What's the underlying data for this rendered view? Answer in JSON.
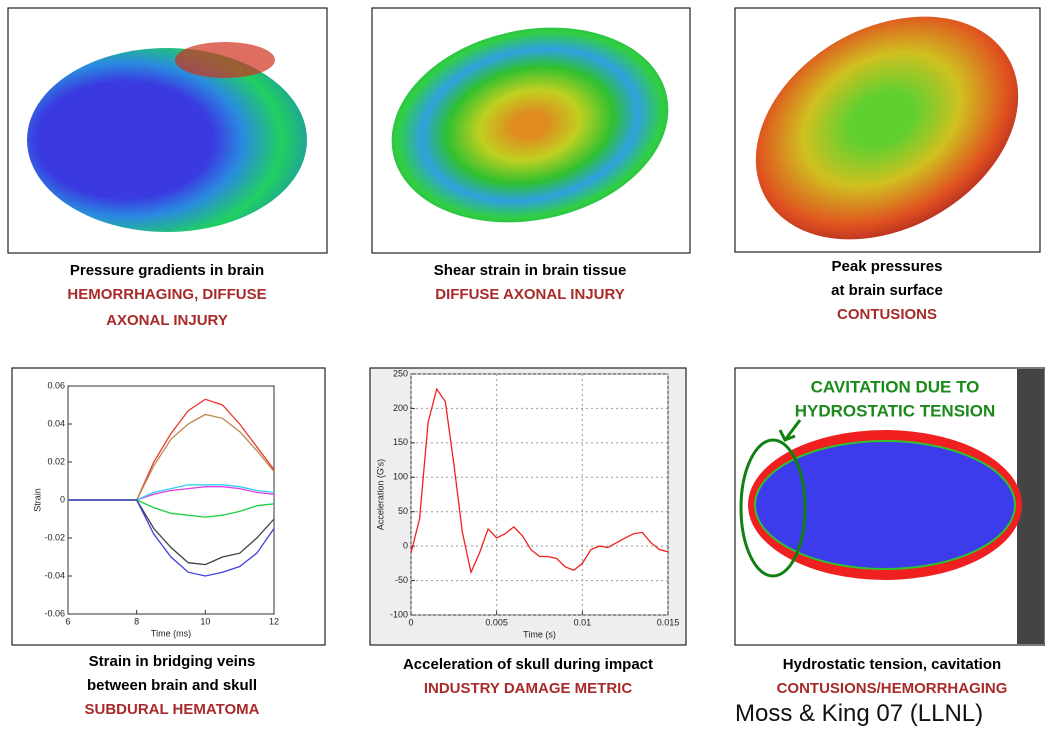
{
  "panels": [
    {
      "caption": [
        "Pressure gradients in brain"
      ],
      "injury": [
        "HEMORRHAGING, DIFFUSE",
        "AXONAL INJURY"
      ]
    },
    {
      "caption": [
        "Shear strain in brain tissue"
      ],
      "injury": [
        "DIFFUSE AXONAL INJURY"
      ]
    },
    {
      "caption": [
        "Peak pressures",
        "at brain surface"
      ],
      "injury": [
        "CONTUSIONS"
      ]
    },
    {
      "caption": [
        "Strain in bridging veins",
        "between brain and skull"
      ],
      "injury": [
        "SUBDURAL HEMATOMA"
      ]
    },
    {
      "caption": [
        "Acceleration of skull during impact"
      ],
      "injury": [
        "INDUSTRY DAMAGE METRIC"
      ]
    },
    {
      "caption": [
        "Hydrostatic tension, cavitation"
      ],
      "injury": [
        "CONTUSIONS/HEMORRHAGING"
      ],
      "image_label": [
        "CAVITATION DUE TO",
        "HYDROSTATIC TENSION"
      ]
    }
  ],
  "credit": "Moss & King 07 (LLNL)",
  "chart_data": [
    {
      "type": "line",
      "xlabel": "Time (ms)",
      "ylabel": "Strain",
      "grid": false,
      "x": [
        6,
        7,
        8,
        8.5,
        9,
        9.5,
        10,
        10.5,
        11,
        11.5,
        12
      ],
      "xlim": [
        6,
        12
      ],
      "xticks": [
        6,
        8,
        10,
        12
      ],
      "ylim": [
        -0.06,
        0.06
      ],
      "yticks": [
        -0.06,
        -0.04,
        -0.02,
        0,
        0.02,
        0.04,
        0.06
      ],
      "series": [
        {
          "color": "#e8382c",
          "values": [
            0,
            0,
            0,
            0.02,
            0.035,
            0.047,
            0.053,
            0.05,
            0.04,
            0.028,
            0.016
          ]
        },
        {
          "color": "#b88a50",
          "values": [
            0,
            0,
            0,
            0.018,
            0.032,
            0.04,
            0.045,
            0.043,
            0.036,
            0.026,
            0.015
          ]
        },
        {
          "color": "#e040e0",
          "values": [
            0,
            0,
            0,
            0.003,
            0.005,
            0.006,
            0.007,
            0.007,
            0.006,
            0.004,
            0.003
          ]
        },
        {
          "color": "#30d0f0",
          "values": [
            0,
            0,
            0,
            0.004,
            0.006,
            0.008,
            0.008,
            0.008,
            0.007,
            0.005,
            0.004
          ]
        },
        {
          "color": "#20d040",
          "values": [
            0,
            0,
            0,
            -0.004,
            -0.007,
            -0.008,
            -0.009,
            -0.008,
            -0.006,
            -0.003,
            -0.002
          ]
        },
        {
          "color": "#404040",
          "values": [
            0,
            0,
            0,
            -0.015,
            -0.025,
            -0.033,
            -0.034,
            -0.03,
            -0.028,
            -0.02,
            -0.01
          ]
        },
        {
          "color": "#4040e0",
          "values": [
            0,
            0,
            0,
            -0.018,
            -0.03,
            -0.038,
            -0.04,
            -0.038,
            -0.035,
            -0.028,
            -0.015
          ]
        }
      ]
    },
    {
      "type": "line",
      "xlabel": "Time (s)",
      "ylabel": "Acceleration (G's)",
      "grid": true,
      "x": [
        0,
        0.0005,
        0.001,
        0.0015,
        0.002,
        0.0025,
        0.003,
        0.0035,
        0.004,
        0.0045,
        0.005,
        0.0055,
        0.006,
        0.0065,
        0.007,
        0.0075,
        0.008,
        0.0085,
        0.009,
        0.0095,
        0.01,
        0.0105,
        0.011,
        0.0115,
        0.012,
        0.0125,
        0.013,
        0.0135,
        0.014,
        0.0145,
        0.015
      ],
      "xlim": [
        0,
        0.015
      ],
      "xticks": [
        0,
        0.005,
        0.01,
        0.015
      ],
      "ylim": [
        -100,
        250
      ],
      "yticks": [
        -100,
        -50,
        0,
        50,
        100,
        150,
        200,
        250
      ],
      "series": [
        {
          "color": "#f02020",
          "values": [
            -10,
            40,
            180,
            228,
            210,
            120,
            20,
            -38,
            -10,
            25,
            12,
            18,
            28,
            15,
            -5,
            -15,
            -15,
            -18,
            -30,
            -35,
            -25,
            -5,
            0,
            -2,
            5,
            12,
            18,
            20,
            5,
            -5,
            -8
          ]
        }
      ]
    }
  ]
}
